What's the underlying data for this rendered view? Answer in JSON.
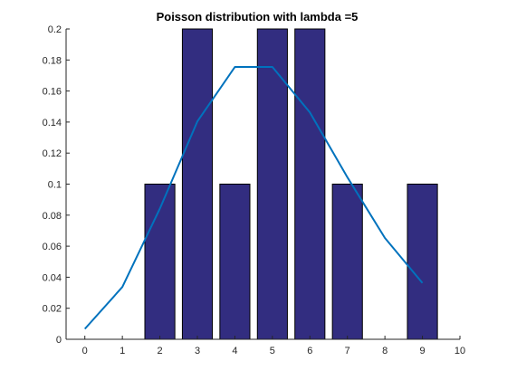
{
  "chart_data": {
    "type": "bar",
    "title": "Poisson distribution with lambda =5",
    "xlabel": "",
    "ylabel": "",
    "xlim": [
      -0.5,
      10
    ],
    "ylim": [
      0,
      0.2
    ],
    "xticks": [
      0,
      1,
      2,
      3,
      4,
      5,
      6,
      7,
      8,
      9,
      10
    ],
    "yticks": [
      0,
      0.02,
      0.04,
      0.06,
      0.08,
      0.1,
      0.12,
      0.14,
      0.16,
      0.18,
      0.2
    ],
    "grid": false,
    "bars": {
      "x": [
        2,
        3,
        4,
        5,
        6,
        7,
        9
      ],
      "values": [
        0.1,
        0.2,
        0.1,
        0.2,
        0.2,
        0.1,
        0.1
      ],
      "color": "#322d80",
      "edge_color": "#000000"
    },
    "line": {
      "x": [
        0,
        1,
        2,
        3,
        4,
        5,
        6,
        7,
        8,
        9
      ],
      "values": [
        0.0067,
        0.0337,
        0.0842,
        0.1404,
        0.1755,
        0.1755,
        0.1462,
        0.1044,
        0.0653,
        0.0363
      ],
      "color": "#0072bd"
    }
  }
}
